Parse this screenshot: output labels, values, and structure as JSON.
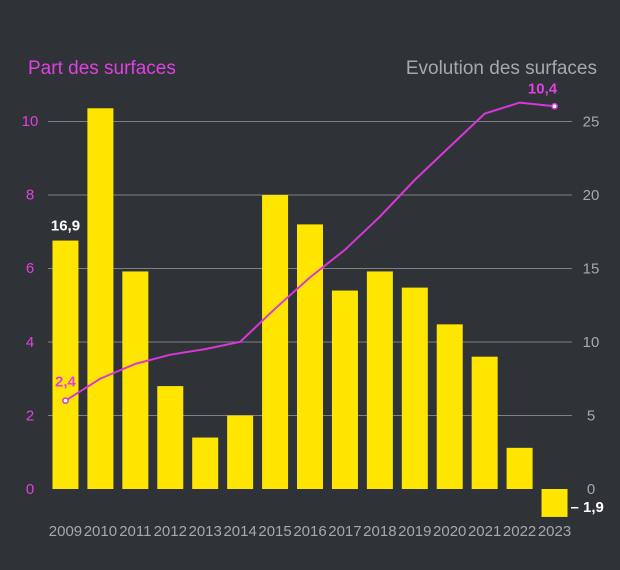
{
  "chart_data": {
    "type": "bar+line",
    "title": "",
    "left_axis_title": "Part des surfaces",
    "right_axis_title": "Evolution des surfaces",
    "categories": [
      "2009",
      "2010",
      "2011",
      "2012",
      "2013",
      "2014",
      "2015",
      "2016",
      "2017",
      "2018",
      "2019",
      "2020",
      "2021",
      "2022",
      "2023"
    ],
    "left_ticks": [
      "0",
      "2",
      "4",
      "6",
      "8",
      "10"
    ],
    "right_ticks": [
      "0",
      "5",
      "10",
      "15",
      "20",
      "25"
    ],
    "ylim_left": [
      0,
      10
    ],
    "ylim_right": [
      -1.9,
      25
    ],
    "grid": true,
    "series": [
      {
        "kind": "bar",
        "axis": "right",
        "color": "#ffe600",
        "values": [
          16.9,
          25.9,
          14.8,
          7.0,
          3.5,
          5.0,
          20.0,
          18.0,
          13.5,
          14.8,
          13.7,
          11.2,
          9.0,
          2.8,
          -1.9
        ]
      },
      {
        "kind": "line",
        "axis": "left",
        "color": "#d837d8",
        "values": [
          2.4,
          3.0,
          3.4,
          3.65,
          3.8,
          4.0,
          4.9,
          5.75,
          6.5,
          7.4,
          8.4,
          9.3,
          10.2,
          10.5,
          10.4
        ]
      }
    ],
    "data_labels": {
      "bar_first": "16,9",
      "bar_last": "– 1,9",
      "line_first": "2,4",
      "line_last": "10,4"
    }
  }
}
